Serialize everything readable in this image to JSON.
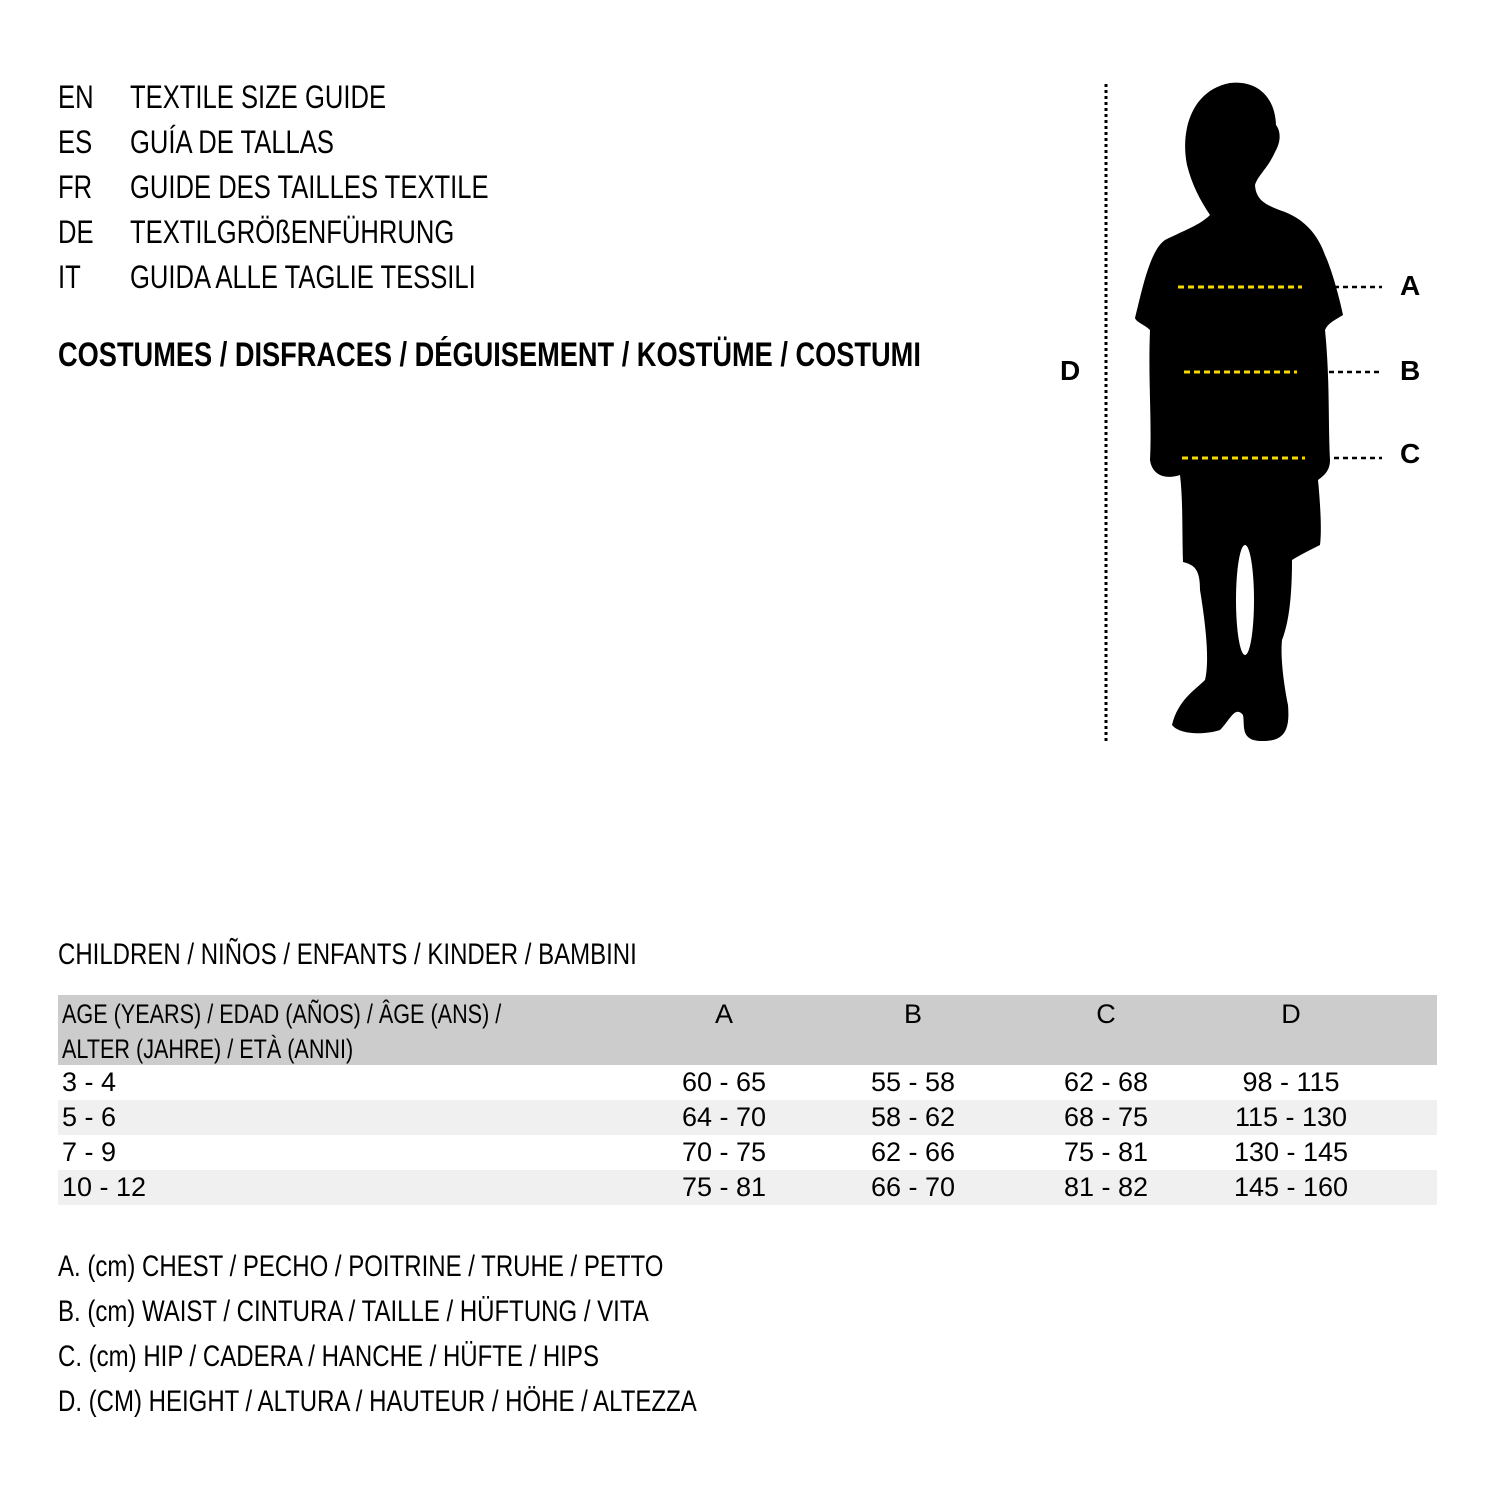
{
  "languages": [
    {
      "code": "EN",
      "title": "TEXTILE SIZE GUIDE"
    },
    {
      "code": "ES",
      "title": "GUÍA DE TALLAS"
    },
    {
      "code": "FR",
      "title": "GUIDE DES TAILLES TEXTILE"
    },
    {
      "code": "DE",
      "title": "TEXTILGRÖßENFÜHRUNG"
    },
    {
      "code": "IT",
      "title": "GUIDA ALLE TAGLIE TESSILI"
    }
  ],
  "category": "COSTUMES / DISFRACES / DÉGUISEMENT / KOSTÜME / COSTUMI",
  "figure": {
    "labels": {
      "a": "A",
      "b": "B",
      "c": "C",
      "d": "D"
    },
    "silhouette_color": "#000000",
    "measure_line_color": "#f5d800"
  },
  "group": "CHILDREN / NIÑOS / ENFANTS / KINDER / BAMBINI",
  "table": {
    "header": {
      "age_line1": "AGE (YEARS) / EDAD (AÑOS) / ÂGE (ANS) /",
      "age_line2": "ALTER (JAHRE) / ETÀ (ANNI)",
      "cols": [
        "A",
        "B",
        "C",
        "D"
      ]
    },
    "rows": [
      {
        "age": "3 - 4",
        "values": [
          "60 - 65",
          "55 - 58",
          "62 - 68",
          "98 - 115"
        ]
      },
      {
        "age": "5 - 6",
        "values": [
          "64 - 70",
          "58 - 62",
          "68 - 75",
          "115 - 130"
        ]
      },
      {
        "age": "7 - 9",
        "values": [
          "70 - 75",
          "62 - 66",
          "75 - 81",
          "130 - 145"
        ]
      },
      {
        "age": "10 - 12",
        "values": [
          "75 - 81",
          "66 - 70",
          "81 - 82",
          "145 - 160"
        ]
      }
    ]
  },
  "legend": [
    "A. (cm) CHEST / PECHO / POITRINE / TRUHE / PETTO",
    "B. (cm) WAIST / CINTURA / TAILLE / HÜFTUNG / VITA",
    "C. (cm) HIP / CADERA / HANCHE / HÜFTE / HIPS",
    "D. (CM) HEIGHT / ALTURA / HAUTEUR / HÖHE / ALTEZZA"
  ]
}
